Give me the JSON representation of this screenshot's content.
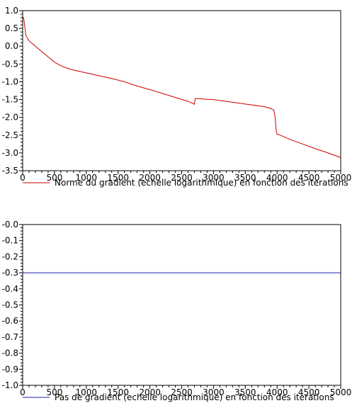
{
  "chart_data": [
    {
      "type": "line",
      "xlim": [
        0,
        5000
      ],
      "ylim": [
        -3.5,
        1.0
      ],
      "x_ticks": [
        0,
        500,
        1000,
        1500,
        2000,
        2500,
        3000,
        3500,
        4000,
        4500,
        5000
      ],
      "y_ticks": [
        1.0,
        0.5,
        0.0,
        -0.5,
        -1.0,
        -1.5,
        -2.0,
        -2.5,
        -3.0,
        -3.5
      ],
      "x_tick_labels": [
        "0",
        "500",
        "1000",
        "1500",
        "2000",
        "2500",
        "3000",
        "3500",
        "4000",
        "4500",
        "5000"
      ],
      "y_tick_labels": [
        "1.0",
        "0.5",
        "0.0",
        "-0.5",
        "-1.0",
        "-1.5",
        "-2.0",
        "-2.5",
        "-3.0",
        "-3.5"
      ],
      "grid": false,
      "legend_position": "bottom-left",
      "series": [
        {
          "name": "Norme du gradient (echelle logarithmique) en fonction des iterations",
          "color": "#cc0000",
          "x": [
            0,
            20,
            50,
            100,
            200,
            300,
            400,
            500,
            600,
            700,
            800,
            1000,
            1200,
            1400,
            1600,
            1800,
            2000,
            2200,
            2400,
            2600,
            2700,
            2710,
            2750,
            2800,
            3000,
            3200,
            3400,
            3600,
            3800,
            3900,
            3950,
            3970,
            3980,
            3990,
            4000,
            4050,
            4200,
            4400,
            4600,
            4800,
            5000
          ],
          "y": [
            0.85,
            0.75,
            0.3,
            0.15,
            0.0,
            -0.15,
            -0.3,
            -0.45,
            -0.55,
            -0.62,
            -0.67,
            -0.75,
            -0.83,
            -0.91,
            -1.0,
            -1.12,
            -1.22,
            -1.33,
            -1.44,
            -1.55,
            -1.63,
            -1.48,
            -1.47,
            -1.48,
            -1.5,
            -1.55,
            -1.6,
            -1.65,
            -1.7,
            -1.75,
            -1.8,
            -2.0,
            -2.25,
            -2.42,
            -2.47,
            -2.5,
            -2.62,
            -2.75,
            -2.88,
            -3.0,
            -3.13
          ]
        }
      ]
    },
    {
      "type": "line",
      "xlim": [
        0,
        5000
      ],
      "ylim": [
        -1.0,
        0.0
      ],
      "x_ticks": [
        0,
        500,
        1000,
        1500,
        2000,
        2500,
        3000,
        3500,
        4000,
        4500,
        5000
      ],
      "y_ticks": [
        0.0,
        -0.1,
        -0.2,
        -0.3,
        -0.4,
        -0.5,
        -0.6,
        -0.7,
        -0.8,
        -0.9,
        -1.0
      ],
      "x_tick_labels": [
        "0",
        "500",
        "1000",
        "1500",
        "2000",
        "2500",
        "3000",
        "3500",
        "4000",
        "4500",
        "5000"
      ],
      "y_tick_labels": [
        "-0.0",
        "-0.1",
        "-0.2",
        "-0.3",
        "-0.4",
        "-0.5",
        "-0.6",
        "-0.7",
        "-0.8",
        "-0.9",
        "-1.0"
      ],
      "grid": false,
      "legend_position": "bottom-left",
      "series": [
        {
          "name": "Pas de gradient (echelle logarithmique) en fonction des iterations",
          "color": "#1f1fb4",
          "x": [
            0,
            5000
          ],
          "y": [
            -0.3,
            -0.3
          ]
        }
      ]
    }
  ]
}
